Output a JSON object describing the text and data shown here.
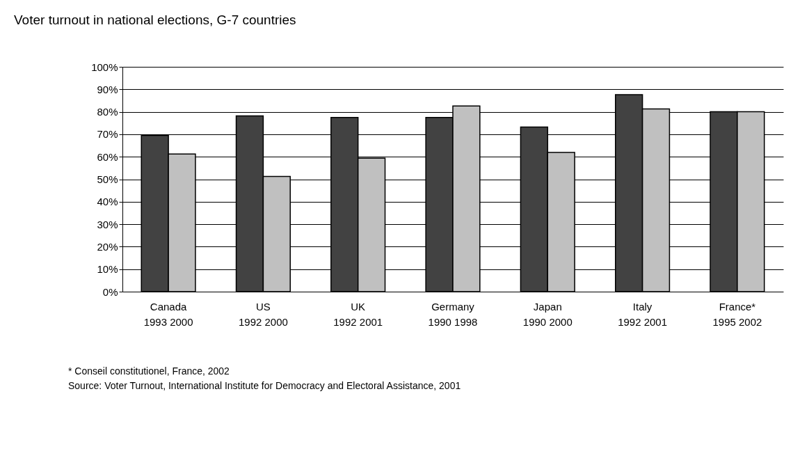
{
  "chart_data": {
    "type": "bar",
    "title": "Voter turnout in national elections, G-7 countries",
    "categories": [
      "Canada\n1993 2000",
      "US\n1992 2000",
      "UK\n1992 2001",
      "Germany\n1990 1998",
      "Japan\n1990 2000",
      "Italy\n1992 2001",
      "France*\n1995 2002"
    ],
    "series": [
      {
        "color": "#424242",
        "values": [
          69.5,
          78.2,
          77.5,
          77.5,
          73.2,
          87.6,
          80.0
        ]
      },
      {
        "color": "#c0c0c0",
        "values": [
          61.2,
          51.2,
          59.4,
          82.6,
          61.9,
          81.3,
          80.0
        ]
      }
    ],
    "ylim": [
      0,
      100
    ],
    "yticks": [
      {
        "value": 0,
        "label": "0%"
      },
      {
        "value": 10,
        "label": "10%"
      },
      {
        "value": 20,
        "label": "20%"
      },
      {
        "value": 30,
        "label": "30%"
      },
      {
        "value": 40,
        "label": "40%"
      },
      {
        "value": 50,
        "label": "50%"
      },
      {
        "value": 60,
        "label": "60%"
      },
      {
        "value": 70,
        "label": "70%"
      },
      {
        "value": 80,
        "label": "80%"
      },
      {
        "value": 90,
        "label": "90%"
      },
      {
        "value": 100,
        "label": "100%"
      }
    ],
    "grid": "y",
    "legend": false,
    "annotations": [
      "* Conseil constitutionel, France, 2002",
      "Source: Voter Turnout, International Institute for Democracy and Electoral Assistance, 2001"
    ]
  }
}
